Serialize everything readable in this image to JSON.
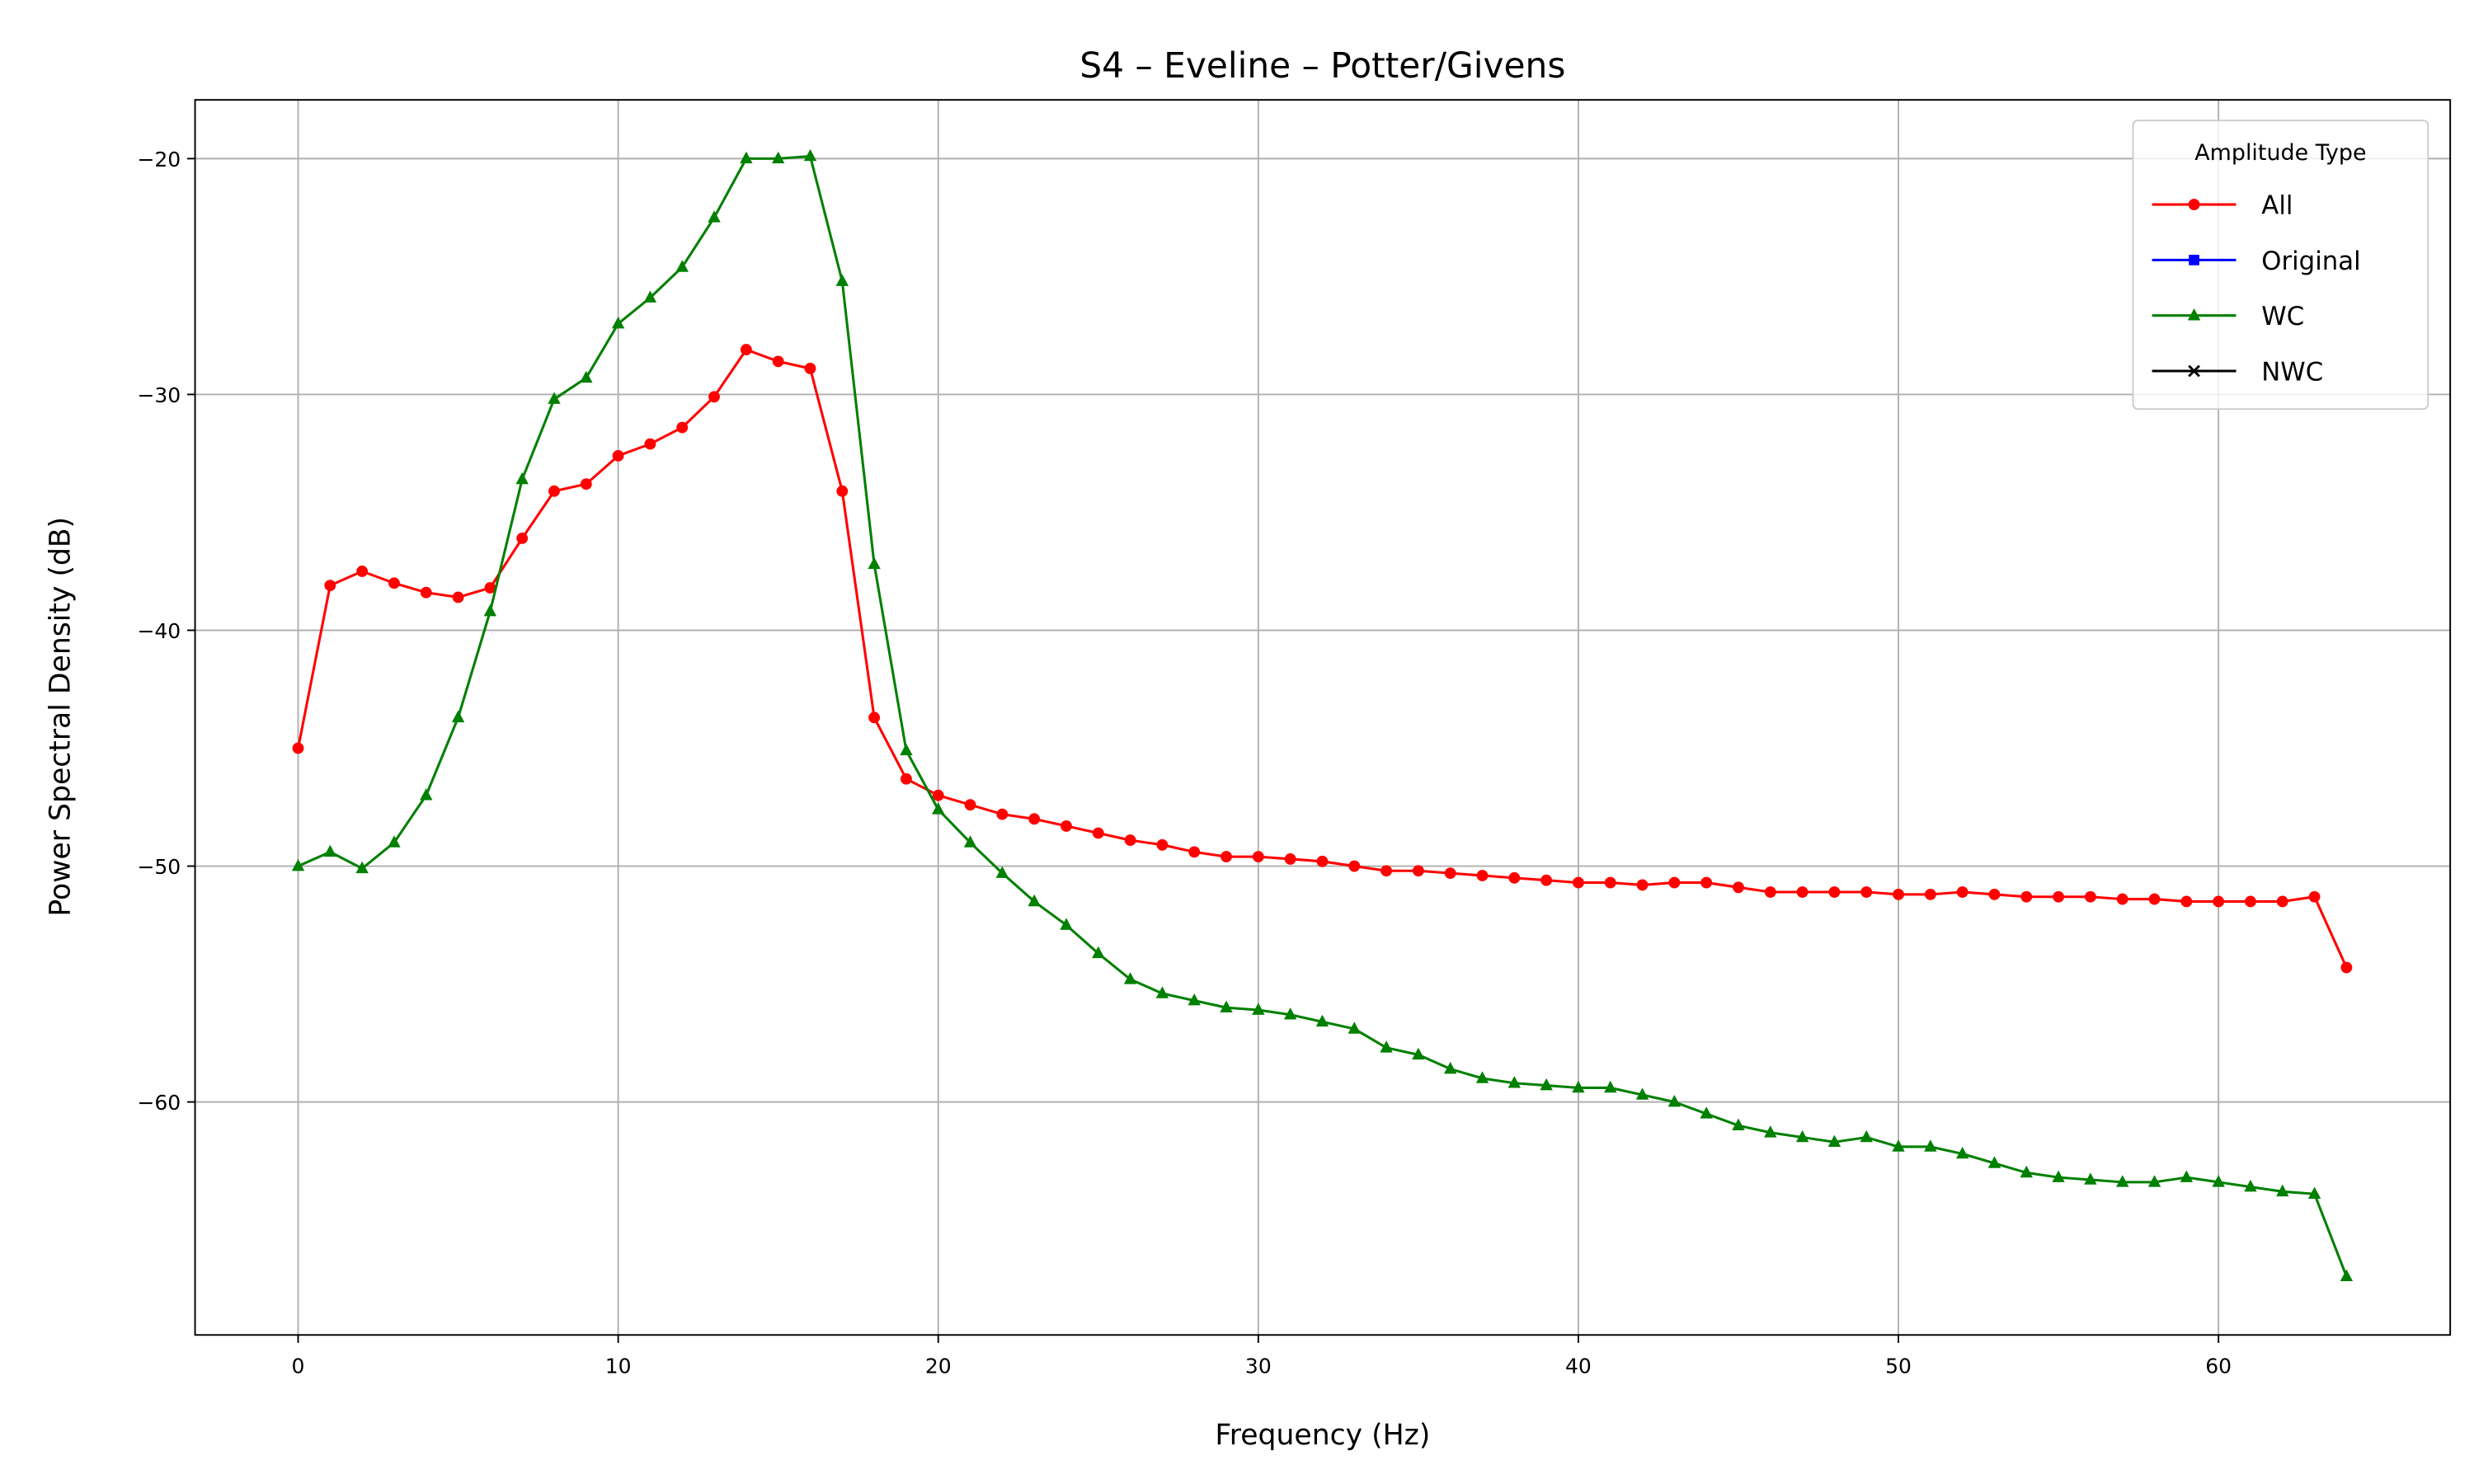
{
  "chart_data": {
    "type": "line",
    "title": "S4 – Eveline – Potter/Givens",
    "x_label": "Frequency (Hz)",
    "y_label": "Power Spectral Density (dB)",
    "x": [
      0,
      1,
      2,
      3,
      4,
      5,
      6,
      7,
      8,
      9,
      10,
      11,
      12,
      13,
      14,
      15,
      16,
      17,
      18,
      19,
      20,
      21,
      22,
      23,
      24,
      25,
      26,
      27,
      28,
      29,
      30,
      31,
      32,
      33,
      34,
      35,
      36,
      37,
      38,
      39,
      40,
      41,
      42,
      43,
      44,
      45,
      46,
      47,
      48,
      49,
      50,
      51,
      52,
      53,
      54,
      55,
      56,
      57,
      58,
      59,
      60,
      61,
      62,
      63,
      64
    ],
    "series": [
      {
        "name": "All",
        "color": "#ff0000",
        "marker": "circle",
        "values": [
          -45.0,
          -38.1,
          -37.5,
          -38.0,
          -38.4,
          -38.6,
          -38.2,
          -36.1,
          -34.1,
          -33.8,
          -32.6,
          -32.1,
          -31.4,
          -30.1,
          -28.1,
          -28.6,
          -28.9,
          -34.1,
          -43.7,
          -46.3,
          -47.0,
          -47.4,
          -47.8,
          -48.0,
          -48.3,
          -48.6,
          -48.9,
          -49.1,
          -49.4,
          -49.6,
          -49.6,
          -49.7,
          -49.8,
          -50.0,
          -50.2,
          -50.2,
          -50.3,
          -50.4,
          -50.5,
          -50.6,
          -50.7,
          -50.7,
          -50.8,
          -50.7,
          -50.7,
          -50.9,
          -51.1,
          -51.1,
          -51.1,
          -51.1,
          -51.2,
          -51.2,
          -51.1,
          -51.2,
          -51.3,
          -51.3,
          -51.3,
          -51.4,
          -51.4,
          -51.5,
          -51.5,
          -51.5,
          -51.5,
          -51.3,
          -54.3
        ]
      },
      {
        "name": "Original",
        "color": "#0000ff",
        "marker": "square",
        "values": [
          null,
          null,
          null,
          null,
          null,
          null,
          null,
          null,
          null,
          null,
          null,
          null,
          null,
          null,
          null,
          null,
          null,
          null,
          null,
          null,
          null,
          null,
          null,
          null,
          null,
          null,
          null,
          null,
          null,
          null,
          null,
          null,
          null,
          null,
          null,
          null,
          null,
          null,
          null,
          null,
          null,
          null,
          null,
          null,
          null,
          null,
          null,
          null,
          null,
          null,
          null,
          null,
          null,
          null,
          null,
          null,
          null,
          null,
          null,
          null,
          null,
          null,
          null,
          null,
          null
        ]
      },
      {
        "name": "WC",
        "color": "#008000",
        "marker": "triangle",
        "values": [
          -50.0,
          -49.4,
          -50.1,
          -49.0,
          -47.0,
          -43.7,
          -39.2,
          -33.6,
          -30.2,
          -29.3,
          -27.0,
          -25.9,
          -24.6,
          -22.5,
          -20.0,
          -20.0,
          -19.9,
          -25.2,
          -37.2,
          -45.1,
          -47.6,
          -49.0,
          -50.3,
          -51.5,
          -52.5,
          -53.7,
          -54.8,
          -55.4,
          -55.7,
          -56.0,
          -56.1,
          -56.3,
          -56.6,
          -56.9,
          -57.7,
          -58.0,
          -58.6,
          -59.0,
          -59.2,
          -59.3,
          -59.4,
          -59.4,
          -59.7,
          -60.0,
          -60.5,
          -61.0,
          -61.3,
          -61.5,
          -61.7,
          -61.5,
          -61.9,
          -61.9,
          -62.2,
          -62.6,
          -63.0,
          -63.2,
          -63.3,
          -63.4,
          -63.4,
          -63.2,
          -63.4,
          -63.6,
          -63.8,
          -63.9,
          -67.4
        ]
      },
      {
        "name": "NWC",
        "color": "#000000",
        "marker": "x",
        "values": [
          null,
          null,
          null,
          null,
          null,
          null,
          null,
          null,
          null,
          null,
          null,
          null,
          null,
          null,
          null,
          null,
          null,
          null,
          null,
          null,
          null,
          null,
          null,
          null,
          null,
          null,
          null,
          null,
          null,
          null,
          null,
          null,
          null,
          null,
          null,
          null,
          null,
          null,
          null,
          null,
          null,
          null,
          null,
          null,
          null,
          null,
          null,
          null,
          null,
          null,
          null,
          null,
          null,
          null,
          null,
          null,
          null,
          null,
          null,
          null,
          null,
          null,
          null,
          null,
          null
        ]
      }
    ],
    "xlim": [
      -3.22,
      67.24
    ],
    "ylim": [
      -69.88,
      -17.51
    ],
    "xticks": [
      0,
      10,
      20,
      30,
      40,
      50,
      60
    ],
    "yticks": [
      {
        "value": -60,
        "label": "−60"
      },
      {
        "value": -50,
        "label": "−50"
      },
      {
        "value": -40,
        "label": "−40"
      },
      {
        "value": -30,
        "label": "−30"
      },
      {
        "value": -20,
        "label": "−20"
      }
    ],
    "grid": true,
    "legend_title": "Amplitude Type",
    "legend_position": "upper right"
  }
}
